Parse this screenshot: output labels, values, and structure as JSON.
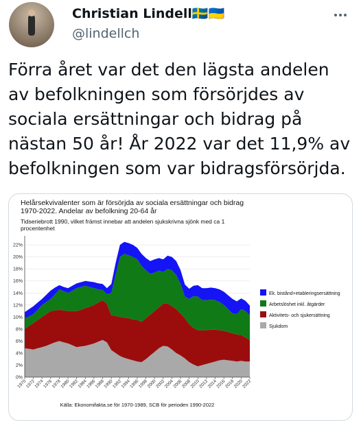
{
  "tweet": {
    "author_name": "Christian Lindell🇸🇪🇺🇦",
    "handle": "@lindellch",
    "text_lines": [
      "Förra året var det den lägsta andelen",
      "av befolkningen som försörjdes av",
      "sociala ersättningar och bidrag på",
      "nästan 50 år! År 2022 var det 11,9% av",
      "befolkningen som var bidragsförsörjda."
    ]
  },
  "chart_data": {
    "type": "stacked_area",
    "title": [
      "Helårsekvivalenter som är försörjda av sociala ersättningar och bidrag",
      "1970-2022. Andelar av befolkning 20-64 år"
    ],
    "subtitle": [
      "Tidseriebrott 1990, vilket främst innebar att andelen sjukskrivna sjönk med ca 1",
      "procentenhet"
    ],
    "source": "Källa: Ekonomifakta.se för 1970-1989, SCB för perioden 1990-2022",
    "x": [
      1970,
      1971,
      1972,
      1973,
      1974,
      1975,
      1976,
      1977,
      1978,
      1979,
      1980,
      1981,
      1982,
      1983,
      1984,
      1985,
      1986,
      1987,
      1988,
      1989,
      1990,
      1991,
      1992,
      1993,
      1994,
      1995,
      1996,
      1997,
      1998,
      1999,
      2000,
      2001,
      2002,
      2003,
      2004,
      2005,
      2006,
      2007,
      2008,
      2009,
      2010,
      2011,
      2012,
      2013,
      2014,
      2015,
      2016,
      2017,
      2018,
      2019,
      2020,
      2021,
      2022
    ],
    "xlim": [
      1970,
      2022
    ],
    "xticks": [
      1970,
      1972,
      1974,
      1976,
      1978,
      1980,
      1982,
      1984,
      1986,
      1988,
      1990,
      1992,
      1994,
      1996,
      1998,
      2000,
      2002,
      2004,
      2006,
      2008,
      2010,
      2012,
      2014,
      2016,
      2018,
      2020,
      2022
    ],
    "ylim": [
      0,
      23.5
    ],
    "yticks": [
      {
        "value": 0,
        "label": "0%"
      },
      {
        "value": 2,
        "label": "2%"
      },
      {
        "value": 4,
        "label": "4%"
      },
      {
        "value": 6,
        "label": "6%"
      },
      {
        "value": 8,
        "label": "8%"
      },
      {
        "value": 10,
        "label": "10%"
      },
      {
        "value": 12,
        "label": "12%"
      },
      {
        "value": 14,
        "label": "14%"
      },
      {
        "value": 16,
        "label": "16%"
      },
      {
        "value": 18,
        "label": "18%"
      },
      {
        "value": 20,
        "label": "20%"
      },
      {
        "value": 22,
        "label": "22%"
      }
    ],
    "grid": true,
    "legend": "right",
    "series": [
      {
        "name": "Sjukdom",
        "color": "#a9a9a9",
        "values": [
          4.8,
          4.7,
          4.6,
          4.8,
          5.0,
          5.2,
          5.5,
          5.8,
          6.0,
          5.8,
          5.6,
          5.3,
          5.0,
          5.1,
          5.2,
          5.4,
          5.6,
          5.9,
          6.2,
          5.8,
          4.5,
          4.0,
          3.5,
          3.2,
          3.0,
          2.8,
          2.6,
          2.5,
          3.0,
          3.6,
          4.2,
          4.8,
          5.2,
          5.1,
          4.6,
          4.0,
          3.6,
          3.1,
          2.5,
          2.1,
          1.8,
          2.0,
          2.2,
          2.4,
          2.6,
          2.8,
          2.9,
          2.8,
          2.7,
          2.6,
          2.7,
          2.6,
          2.6
        ]
      },
      {
        "name": "Aktivitets- och sjukersättning",
        "color": "#9b0d0d",
        "values": [
          3.2,
          3.8,
          4.4,
          4.7,
          5.0,
          5.3,
          5.5,
          5.3,
          5.2,
          5.3,
          5.4,
          5.7,
          6.0,
          6.1,
          6.3,
          6.3,
          6.4,
          6.5,
          6.6,
          6.4,
          5.8,
          6.2,
          6.5,
          6.7,
          6.8,
          6.8,
          6.9,
          6.7,
          6.8,
          6.8,
          6.8,
          6.8,
          7.0,
          7.2,
          7.2,
          7.3,
          7.0,
          6.7,
          6.3,
          6.1,
          6.0,
          5.8,
          5.6,
          5.5,
          5.3,
          5.0,
          4.8,
          4.7,
          4.6,
          4.5,
          4.3,
          4.0,
          3.6
        ]
      },
      {
        "name": "Arbetslöshet inkl. åtgärder",
        "color": "#0f7a16",
        "values": [
          1.8,
          1.6,
          1.5,
          1.7,
          2.0,
          2.0,
          2.0,
          2.7,
          3.4,
          3.2,
          3.0,
          3.4,
          3.8,
          3.8,
          3.7,
          3.3,
          2.8,
          2.2,
          1.7,
          1.6,
          3.7,
          6.8,
          10.0,
          10.6,
          10.5,
          10.4,
          10.1,
          9.3,
          8.0,
          6.8,
          6.4,
          6.1,
          5.3,
          5.7,
          6.0,
          5.7,
          4.9,
          3.6,
          4.2,
          5.3,
          5.6,
          5.0,
          5.0,
          5.0,
          4.9,
          4.7,
          4.3,
          3.8,
          3.3,
          3.4,
          4.3,
          4.4,
          4.1
        ]
      },
      {
        "name": "Ek. bistånd+etableringsersättning",
        "color": "#1414f5",
        "values": [
          1.0,
          1.2,
          1.3,
          1.2,
          1.0,
          1.2,
          1.4,
          1.1,
          0.7,
          0.7,
          0.8,
          0.8,
          0.8,
          0.8,
          0.8,
          0.9,
          1.0,
          1.0,
          1.0,
          1.0,
          1.5,
          2.0,
          2.0,
          2.0,
          2.0,
          2.0,
          1.9,
          2.0,
          2.0,
          2.1,
          2.2,
          2.1,
          2.1,
          2.2,
          2.2,
          2.3,
          2.3,
          2.0,
          1.7,
          1.7,
          1.9,
          2.0,
          2.0,
          2.0,
          2.0,
          2.1,
          2.2,
          2.3,
          2.4,
          2.1,
          1.8,
          1.7,
          1.6
        ]
      }
    ]
  }
}
